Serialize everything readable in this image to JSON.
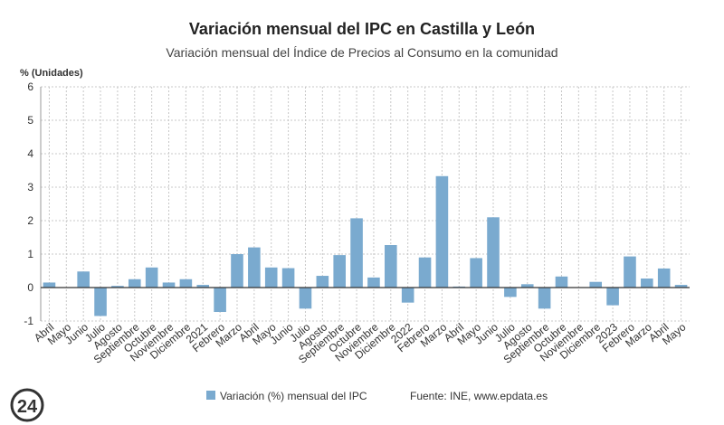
{
  "chart_data": {
    "type": "bar",
    "title": "Variación mensual del IPC en Castilla y León",
    "subtitle": "Variación mensual del Índice de Precios al Consumo en la comunidad",
    "y_label": "% (Unidades)",
    "categories": [
      "Abril",
      "Mayo",
      "Junio",
      "Julio",
      "Agosto",
      "Septiembre",
      "Octubre",
      "Noviembre",
      "Diciembre",
      "2021",
      "Febrero",
      "Marzo",
      "Abril",
      "Mayo",
      "Junio",
      "Julio",
      "Agosto",
      "Septiembre",
      "Octubre",
      "Noviembre",
      "Diciembre",
      "2022",
      "Febrero",
      "Marzo",
      "Abril",
      "Mayo",
      "Junio",
      "Julio",
      "Agosto",
      "Septiembre",
      "Octubre",
      "Noviembre",
      "Diciembre",
      "2023",
      "Febrero",
      "Marzo",
      "Abril",
      "Mayo"
    ],
    "series": [
      {
        "name": "Variación (%) mensual del IPC",
        "color": "#7aaacf",
        "values": [
          0.15,
          0,
          0.48,
          -0.85,
          0.05,
          0.25,
          0.6,
          0.15,
          0.25,
          0.08,
          -0.73,
          1.0,
          1.2,
          0.6,
          0.58,
          -0.63,
          0.35,
          0.97,
          2.07,
          0.3,
          1.27,
          -0.45,
          0.9,
          3.33,
          0.03,
          0.88,
          2.1,
          -0.28,
          0.1,
          -0.63,
          0.33,
          0,
          0.17,
          -0.53,
          0.93,
          0.27,
          0.57,
          0.08
        ]
      }
    ],
    "ylim": [
      -1,
      6
    ],
    "yticks": [
      -1,
      0,
      1,
      2,
      3,
      4,
      5,
      6
    ],
    "grid": true,
    "source": "Fuente: INE, www.epdata.es",
    "logo": "24"
  }
}
